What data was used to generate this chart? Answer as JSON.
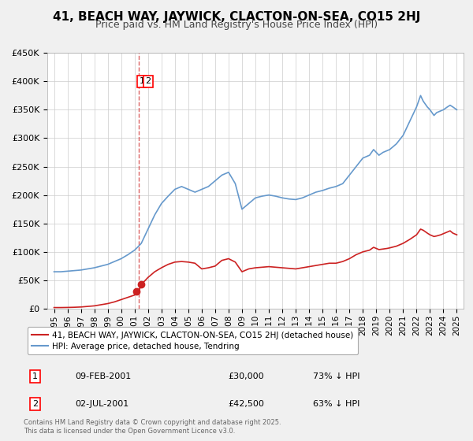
{
  "title": "41, BEACH WAY, JAYWICK, CLACTON-ON-SEA, CO15 2HJ",
  "subtitle": "Price paid vs. HM Land Registry's House Price Index (HPI)",
  "hpi_label": "HPI: Average price, detached house, Tendring",
  "property_label": "41, BEACH WAY, JAYWICK, CLACTON-ON-SEA, CO15 2HJ (detached house)",
  "hpi_color": "#6699cc",
  "property_color": "#cc2222",
  "vline_color": "#cc2222",
  "background_color": "#f0f0f0",
  "plot_bg_color": "#ffffff",
  "grid_color": "#cccccc",
  "transaction1_date": 2001.11,
  "transaction1_label": "1",
  "transaction2_date": 2001.5,
  "transaction2_label": "2",
  "transaction1_price": 30000,
  "transaction2_price": 42500,
  "transaction1_text": "09-FEB-2001",
  "transaction2_text": "02-JUL-2001",
  "transaction1_pct": "73% ↓ HPI",
  "transaction2_pct": "63% ↓ HPI",
  "footnote": "Contains HM Land Registry data © Crown copyright and database right 2025.\nThis data is licensed under the Open Government Licence v3.0.",
  "ylim": [
    0,
    450000
  ],
  "yticks": [
    0,
    50000,
    100000,
    150000,
    200000,
    250000,
    300000,
    350000,
    400000,
    450000
  ],
  "xlim_start": 1994.5,
  "xlim_end": 2025.5
}
